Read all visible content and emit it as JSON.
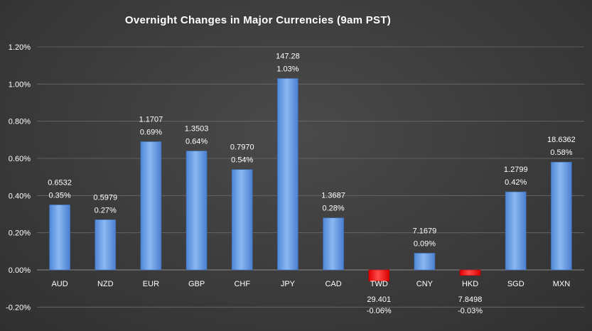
{
  "chart_data": {
    "type": "bar",
    "title": "Overnight Changes in Major Currencies (9am PST)",
    "xlabel": "",
    "ylabel": "",
    "categories": [
      "AUD",
      "NZD",
      "EUR",
      "GBP",
      "CHF",
      "JPY",
      "CAD",
      "TWD",
      "CNY",
      "HKD",
      "SGD",
      "MXN"
    ],
    "values": [
      0.35,
      0.27,
      0.69,
      0.64,
      0.54,
      1.03,
      0.28,
      -0.06,
      0.09,
      -0.03,
      0.42,
      0.58
    ],
    "rates": [
      "0.6532",
      "0.5979",
      "1.1707",
      "1.3503",
      "0.7970",
      "147.28",
      "1.3687",
      "29.401",
      "7.1679",
      "7.8498",
      "1.2799",
      "18.6362"
    ],
    "pct_labels": [
      "0.35%",
      "0.27%",
      "0.69%",
      "0.64%",
      "0.54%",
      "1.03%",
      "0.28%",
      "-0.06%",
      "0.09%",
      "-0.03%",
      "0.42%",
      "0.58%"
    ],
    "yticks": [
      -0.2,
      0.0,
      0.2,
      0.4,
      0.6,
      0.8,
      1.0,
      1.2
    ],
    "ytick_labels": [
      "-0.20%",
      "0.00%",
      "0.20%",
      "0.40%",
      "0.60%",
      "0.80%",
      "1.00%",
      "1.20%"
    ],
    "ylim": [
      -0.2,
      1.2
    ],
    "grid": true,
    "legend": "none",
    "colors": {
      "positive": "#6fa3e8",
      "negative": "#ff1a1a",
      "background": "#3c3c3c"
    }
  }
}
